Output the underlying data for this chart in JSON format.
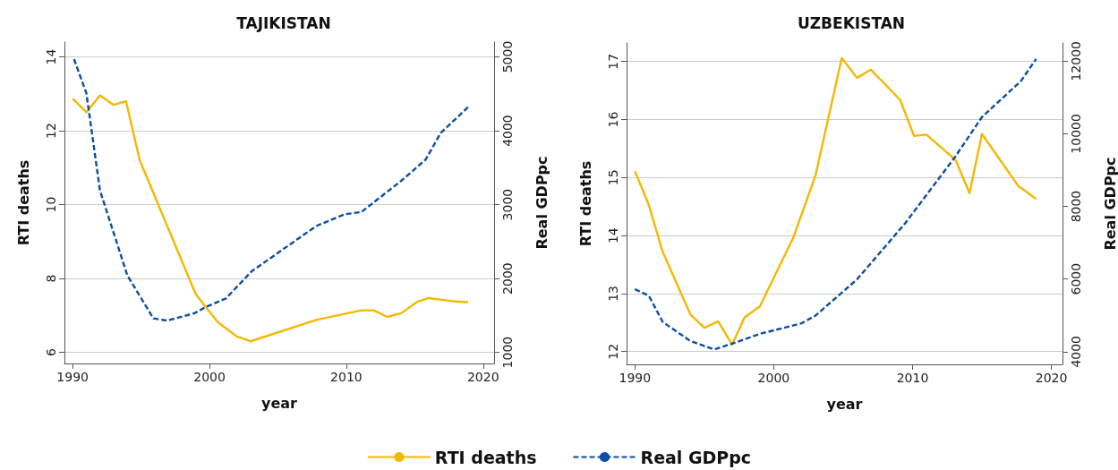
{
  "chart_data": [
    {
      "type": "line",
      "title": "TAJIKISTAN",
      "xlabel": "year",
      "ylabel": "RTI deaths",
      "y2label": "Real GDPpc",
      "xlim": [
        1989.4,
        2020.8
      ],
      "xticks": [
        1990,
        2000,
        2010,
        2020
      ],
      "ylim": [
        5.7,
        14.4
      ],
      "yticks": [
        6,
        8,
        10,
        12,
        14
      ],
      "y2lim": [
        850,
        5200
      ],
      "y2ticks": [
        1000,
        2000,
        3000,
        4000,
        5000
      ],
      "grid": "y",
      "legend": "bottom",
      "series": [
        {
          "name": "RTI deaths",
          "color": "#f5b800",
          "line_style": "solid",
          "x": [
            1990,
            1991,
            1992,
            1993,
            1993.9,
            1994.9,
            1999,
            2000.6,
            2002,
            2003,
            2007.8,
            2011.1,
            2012,
            2013,
            2014,
            2015.2,
            2016,
            2017.9,
            2018.9
          ],
          "values": [
            12.87,
            12.5,
            12.96,
            12.7,
            12.8,
            11.2,
            7.57,
            6.82,
            6.43,
            6.3,
            6.88,
            7.14,
            7.14,
            6.96,
            7.06,
            7.37,
            7.47,
            7.38,
            7.36
          ]
        },
        {
          "name": "Real GDPpc",
          "color": "#0b4ea2",
          "line_style": "dashed",
          "axis": "y2",
          "x": [
            1990.1,
            1991,
            1992,
            1994,
            1995.9,
            1996.9,
            1998.9,
            1999.8,
            2001.2,
            2003.1,
            2007.8,
            2009.9,
            2011.1,
            2014,
            2015.8,
            2016.9,
            2018.9
          ],
          "values": [
            4970,
            4510,
            3190,
            2040,
            1460,
            1430,
            1530,
            1620,
            1730,
            2100,
            2710,
            2870,
            2900,
            3320,
            3610,
            3970,
            4320
          ]
        }
      ]
    },
    {
      "type": "line",
      "title": "UZBEKISTAN",
      "xlabel": "year",
      "ylabel": "RTI deaths",
      "y2label": "Real GDPpc",
      "xlim": [
        1989.4,
        2020.8
      ],
      "xticks": [
        1990,
        2000,
        2010,
        2020
      ],
      "ylim": [
        11.78,
        17.32
      ],
      "yticks": [
        12,
        13,
        14,
        15,
        16,
        17
      ],
      "y2lim": [
        3650,
        12500
      ],
      "y2ticks": [
        4000,
        6000,
        8000,
        10000,
        12000
      ],
      "grid": "y",
      "series": [
        {
          "color": "#f5b800",
          "line_style": "solid",
          "x": [
            1990,
            1991,
            1992,
            1994,
            1995,
            1996,
            1997,
            1997.9,
            1999,
            2001.4,
            2003,
            2004.9,
            2006,
            2007,
            2009.1,
            2010.1,
            2011,
            2013.1,
            2014.1,
            2015,
            2017.6,
            2018.9
          ],
          "values": [
            15.11,
            14.53,
            13.72,
            12.64,
            12.41,
            12.52,
            12.12,
            12.59,
            12.78,
            13.96,
            15.03,
            17.06,
            16.72,
            16.86,
            16.34,
            15.72,
            15.74,
            15.3,
            14.73,
            15.75,
            14.86,
            14.63
          ]
        },
        {
          "color": "#0b4ea2",
          "line_style": "dashed",
          "axis": "y2",
          "x": [
            1990,
            1991,
            1992,
            1994,
            1995.7,
            1997,
            1999,
            2002,
            2003,
            2006,
            2009.5,
            2013,
            2015,
            2017.8,
            2018.9
          ],
          "values": [
            5720,
            5540,
            4820,
            4290,
            4060,
            4220,
            4490,
            4780,
            4990,
            5990,
            7550,
            9330,
            10460,
            11450,
            12060
          ]
        }
      ]
    }
  ]
}
